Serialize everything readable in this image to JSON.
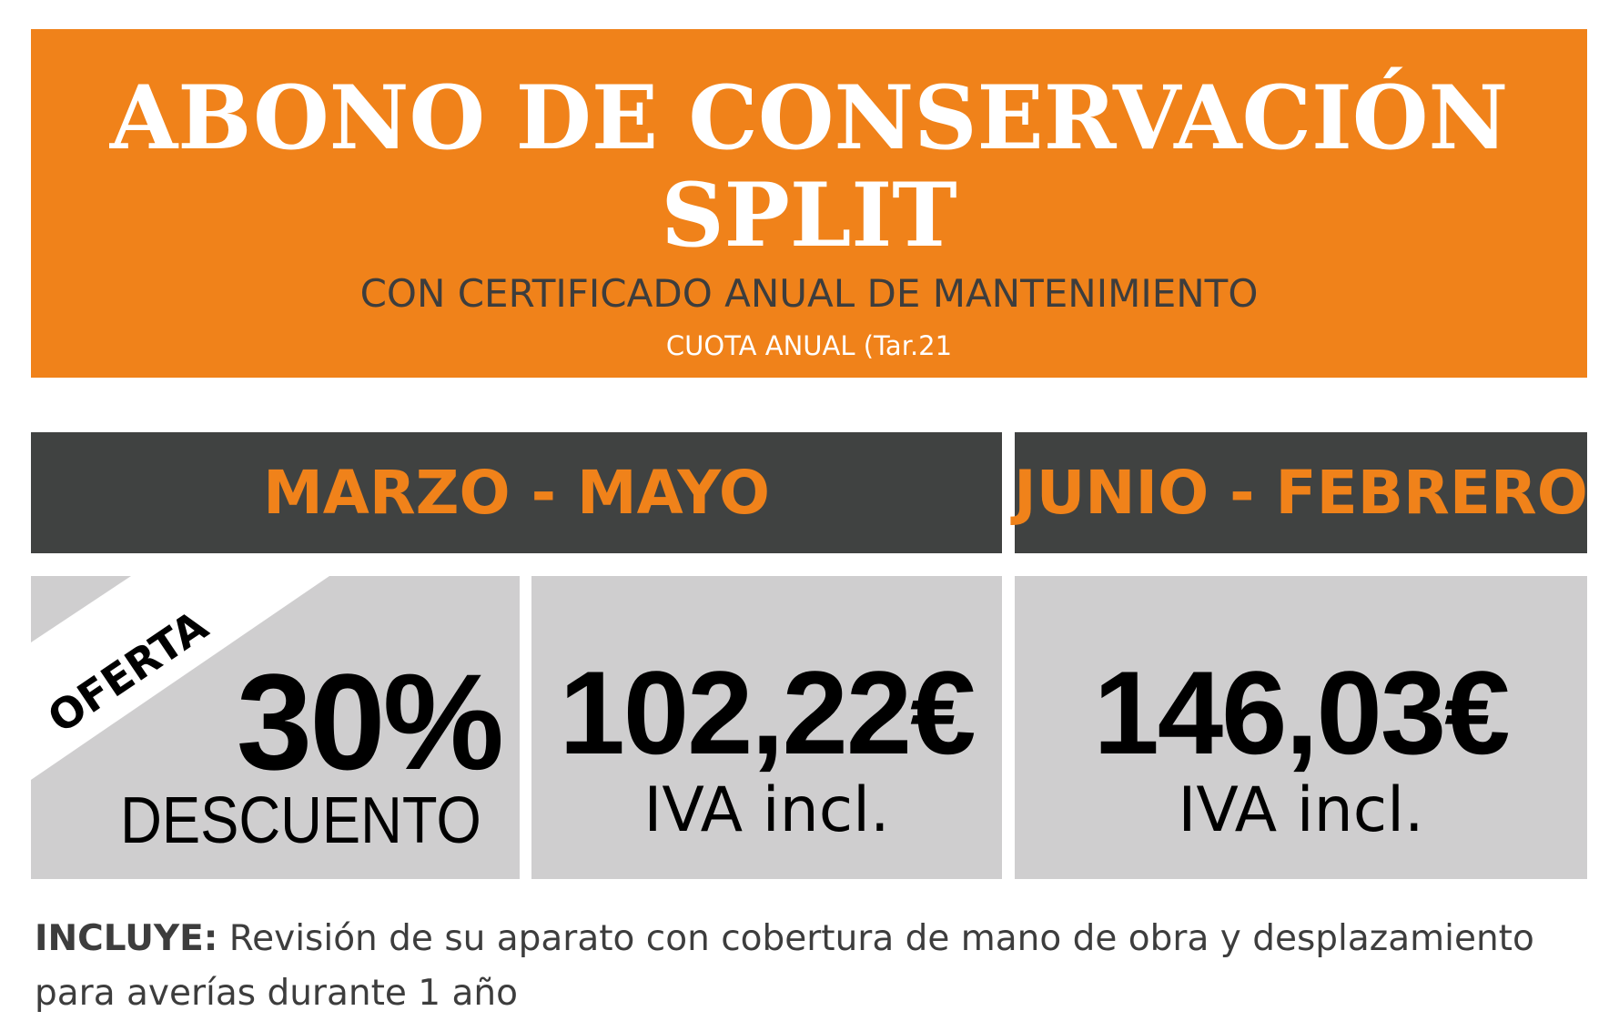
{
  "banner": {
    "title_line1": "ABONO DE CONSERVACIÓN",
    "title_line2": "SPLIT",
    "subtitle": "CON CERTIFICADO ANUAL DE MANTENIMIENTO",
    "fee_note": "CUOTA ANUAL (Tar.21"
  },
  "periods": [
    {
      "label": "MARZO - MAYO"
    },
    {
      "label": "JUNIO - FEBRERO"
    }
  ],
  "offer": {
    "ribbon": "OFERTA",
    "discount": "30%",
    "discount_label": "DESCUENTO"
  },
  "prices": [
    {
      "amount": "102,22€",
      "tax_note": "IVA incl."
    },
    {
      "amount": "146,03€",
      "tax_note": "IVA incl."
    }
  ],
  "footer": {
    "label": "INCLUYE:",
    "text": " Revisión de su aparato con cobertura de mano de obra y desplazamiento para averías durante 1 año"
  },
  "colors": {
    "accent": "#F0821A",
    "header_bg": "#404241",
    "box_bg": "#CFCECF",
    "text_dark": "#3d3d3d"
  }
}
